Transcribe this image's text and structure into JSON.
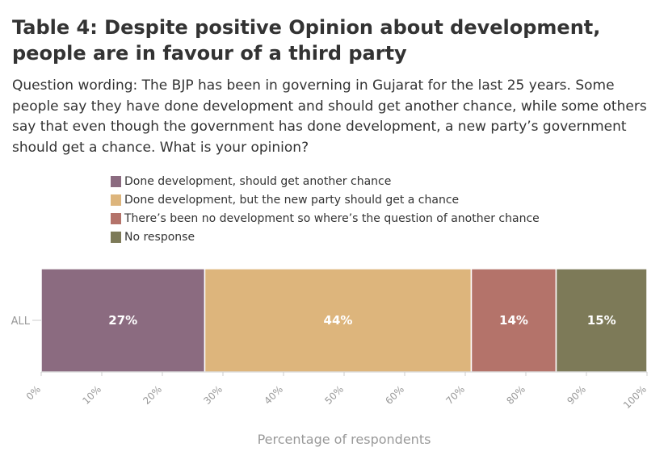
{
  "title": "Table 4: Despite positive Opinion about development, people are in favour of a third party",
  "subtitle": "Question wording: The BJP has been in governing in Gujarat for the last 25 years. Some people say they have done development and should get another chance, while some others say that even though the government has done development, a new party’s government should get a chance. What is your opinion?",
  "colors": {
    "series": [
      "#8b6b80",
      "#ddb57c",
      "#b4736a",
      "#7d7a58"
    ],
    "axis_text": "#999999",
    "label_text": "#ffffff"
  },
  "chart_data": {
    "type": "bar",
    "orientation": "horizontal",
    "stacked": true,
    "categories": [
      "ALL"
    ],
    "series": [
      {
        "name": "Done development, should get another chance",
        "values": [
          27
        ],
        "label": "27%"
      },
      {
        "name": "Done development, but the new party should get a chance",
        "values": [
          44
        ],
        "label": "44%"
      },
      {
        "name": "There’s been no development so where’s the question of another chance",
        "values": [
          14
        ],
        "label": "14%"
      },
      {
        "name": "No response",
        "values": [
          15
        ],
        "label": "15%"
      }
    ],
    "xlabel": "Percentage of respondents",
    "xlim": [
      0,
      100
    ],
    "xticks": [
      "0%",
      "10%",
      "20%",
      "30%",
      "40%",
      "50%",
      "60%",
      "70%",
      "80%",
      "90%",
      "100%"
    ],
    "grid": false,
    "legend_position": "top"
  }
}
